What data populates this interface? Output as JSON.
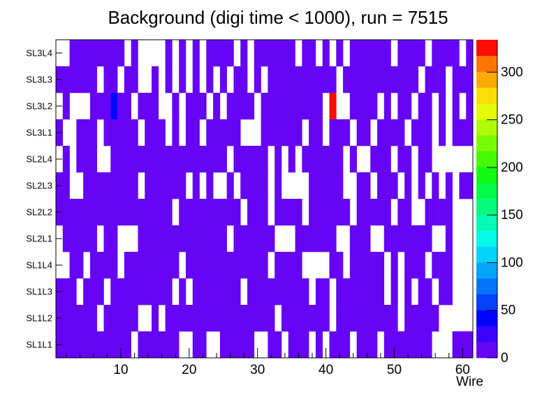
{
  "window": {
    "background": "#ffffff"
  },
  "chart_data": {
    "type": "heatmap",
    "title": "Background (digi time < 1000), run = 7515",
    "xlabel": "Wire",
    "rows_top_to_bottom": [
      "SL3L4",
      "SL3L3",
      "SL3L2",
      "SL3L1",
      "SL2L4",
      "SL2L3",
      "SL2L2",
      "SL2L1",
      "SL1L4",
      "SL1L3",
      "SL1L2",
      "SL1L1"
    ],
    "n_wires": 61,
    "x_major_ticks": [
      10,
      20,
      30,
      40,
      50,
      60
    ],
    "x_minor_tick_step": 2,
    "zmin": 0,
    "zmax": 334,
    "colorbar_ticks": [
      0,
      50,
      100,
      150,
      200,
      250,
      300
    ],
    "palette_bottom_to_top": [
      "#6605f6",
      "#3a05fa",
      "#0005fa",
      "#0540fa",
      "#0573fa",
      "#05a5fa",
      "#05d3fa",
      "#05fae8",
      "#05fab3",
      "#05fa7e",
      "#05fa49",
      "#11fa14",
      "#46fa05",
      "#7bfa05",
      "#b0fa05",
      "#e5fa05",
      "#fade05",
      "#faa905",
      "#fa7405",
      "#fa0d05"
    ],
    "typical_fill_value": 8,
    "empty_cells_by_row": {
      "SL3L4": [
        1,
        2,
        11,
        13,
        14,
        15,
        16,
        18,
        20,
        22,
        27,
        29,
        36,
        39,
        41,
        43,
        50,
        55,
        60
      ],
      "SL3L3": [
        7,
        10,
        13,
        14,
        16,
        18,
        20,
        22,
        24,
        26,
        29,
        31,
        42,
        54,
        58
      ],
      "SL3L2": [
        1,
        3,
        4,
        5,
        12,
        16,
        17,
        19,
        23,
        25,
        30,
        40,
        42,
        43,
        48,
        50,
        53,
        56,
        58,
        60
      ],
      "SL3L1": [
        2,
        3,
        7,
        13,
        17,
        19,
        22,
        28,
        29,
        30,
        37,
        40,
        44,
        47,
        52,
        56,
        58
      ],
      "SL2L4": [
        1,
        3,
        7,
        8,
        26,
        32,
        34,
        36,
        43,
        45,
        46,
        50,
        53,
        56,
        57,
        58,
        59,
        60,
        61
      ],
      "SL2L3": [
        3,
        4,
        13,
        20,
        22,
        24,
        25,
        27,
        32,
        34,
        35,
        36,
        37,
        43,
        44,
        47,
        51,
        53,
        55,
        57,
        59
      ],
      "SL2L2": [
        18,
        28,
        32,
        37,
        44,
        50,
        53,
        54,
        59,
        60,
        61
      ],
      "SL2L1": [
        1,
        7,
        10,
        11,
        12,
        26,
        33,
        34,
        35,
        42,
        43,
        47,
        48,
        56,
        57,
        59,
        60,
        61
      ],
      "SL1L4": [
        1,
        2,
        5,
        10,
        19,
        32,
        37,
        38,
        39,
        40,
        43,
        49,
        51,
        55,
        59,
        60,
        61
      ],
      "SL1L3": [
        4,
        8,
        18,
        20,
        28,
        38,
        41,
        49,
        51,
        53,
        56,
        59,
        60,
        61
      ],
      "SL1L2": [
        7,
        13,
        14,
        16,
        33,
        41,
        51,
        57,
        58,
        59,
        60,
        61
      ],
      "SL1L1": [
        12,
        19,
        20,
        23,
        24,
        30,
        31,
        34,
        38,
        40,
        44,
        48,
        56,
        57,
        58
      ]
    },
    "special_cells": [
      {
        "row": "SL3L2",
        "wire": 9,
        "value": 45
      },
      {
        "row": "SL3L2",
        "wire": 41,
        "value": 330
      }
    ]
  }
}
